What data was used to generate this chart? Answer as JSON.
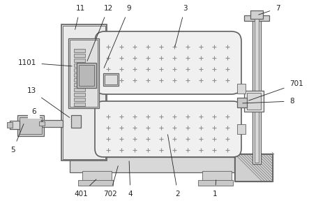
{
  "bg_color": "#ffffff",
  "lc": "#606060",
  "fc_light": "#e8e8e8",
  "fc_mid": "#d0d0d0",
  "fc_dark": "#b8b8b8",
  "fc_white": "#f5f5f5",
  "fc_dot": "#eeeeee",
  "fc_hatched": "#e0e8e0",
  "label_color": "#222222",
  "label_fontsize": 7.5,
  "figsize": [
    4.43,
    2.88
  ],
  "dpi": 100
}
